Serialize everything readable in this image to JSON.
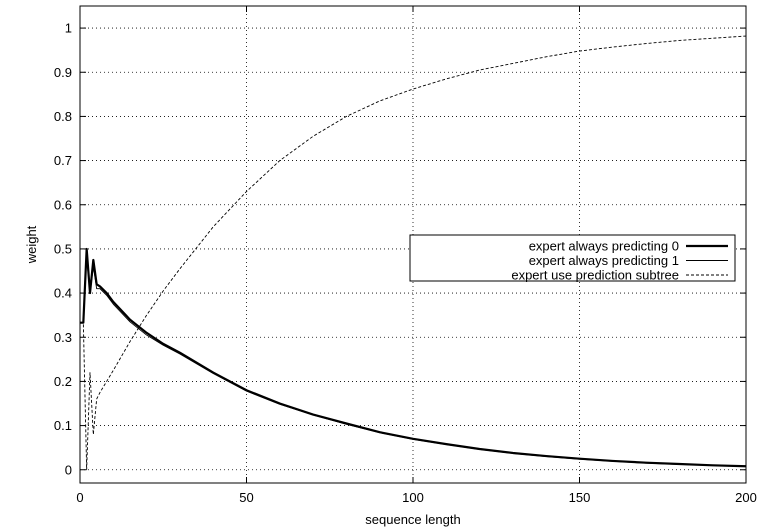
{
  "chart_data": {
    "type": "line",
    "xlabel": "sequence length",
    "ylabel": "weight",
    "xlim": [
      0,
      200
    ],
    "ylim": [
      -0.03,
      1.05
    ],
    "xticks": [
      0,
      50,
      100,
      150,
      200
    ],
    "yticks": [
      0,
      0.1,
      0.2,
      0.3,
      0.4,
      0.5,
      0.6,
      0.7,
      0.8,
      0.9,
      1
    ],
    "grid": true,
    "legend_position": "right",
    "series": [
      {
        "name": "expert always predicting 0",
        "style": "thick-solid",
        "x": [
          0,
          1,
          2,
          3,
          4,
          5,
          6,
          8,
          10,
          15,
          20,
          25,
          30,
          40,
          50,
          60,
          70,
          80,
          90,
          100,
          110,
          120,
          130,
          140,
          150,
          160,
          170,
          180,
          190,
          200
        ],
        "y": [
          0.333,
          0.333,
          0.5,
          0.4,
          0.475,
          0.42,
          0.415,
          0.4,
          0.38,
          0.34,
          0.31,
          0.285,
          0.265,
          0.22,
          0.18,
          0.15,
          0.125,
          0.105,
          0.085,
          0.07,
          0.058,
          0.047,
          0.038,
          0.031,
          0.025,
          0.02,
          0.016,
          0.013,
          0.01,
          0.008
        ]
      },
      {
        "name": "expert always predicting 1",
        "style": "thin-solid",
        "x": [
          0,
          1,
          2,
          3,
          4,
          5,
          6,
          8,
          10,
          15,
          20,
          25,
          30,
          40,
          50,
          60,
          70,
          80,
          90,
          100,
          110,
          120,
          130,
          140,
          150,
          160,
          170,
          180,
          190,
          200
        ],
        "y": [
          0.333,
          0.333,
          0.48,
          0.4,
          0.46,
          0.41,
          0.41,
          0.395,
          0.375,
          0.335,
          0.305,
          0.282,
          0.262,
          0.218,
          0.178,
          0.148,
          0.124,
          0.103,
          0.084,
          0.069,
          0.057,
          0.046,
          0.037,
          0.03,
          0.024,
          0.019,
          0.015,
          0.012,
          0.01,
          0.008
        ]
      },
      {
        "name": "expert use prediction subtree",
        "style": "dashed",
        "x": [
          0,
          1,
          2,
          3,
          4,
          5,
          6,
          8,
          10,
          15,
          20,
          25,
          30,
          40,
          50,
          60,
          70,
          80,
          90,
          100,
          110,
          120,
          130,
          140,
          150,
          160,
          170,
          180,
          190,
          200
        ],
        "y": [
          0.333,
          0.333,
          0.0,
          0.22,
          0.08,
          0.16,
          0.175,
          0.2,
          0.225,
          0.29,
          0.35,
          0.405,
          0.455,
          0.55,
          0.63,
          0.7,
          0.755,
          0.8,
          0.835,
          0.862,
          0.885,
          0.905,
          0.92,
          0.935,
          0.948,
          0.957,
          0.965,
          0.972,
          0.977,
          0.982
        ]
      }
    ]
  }
}
